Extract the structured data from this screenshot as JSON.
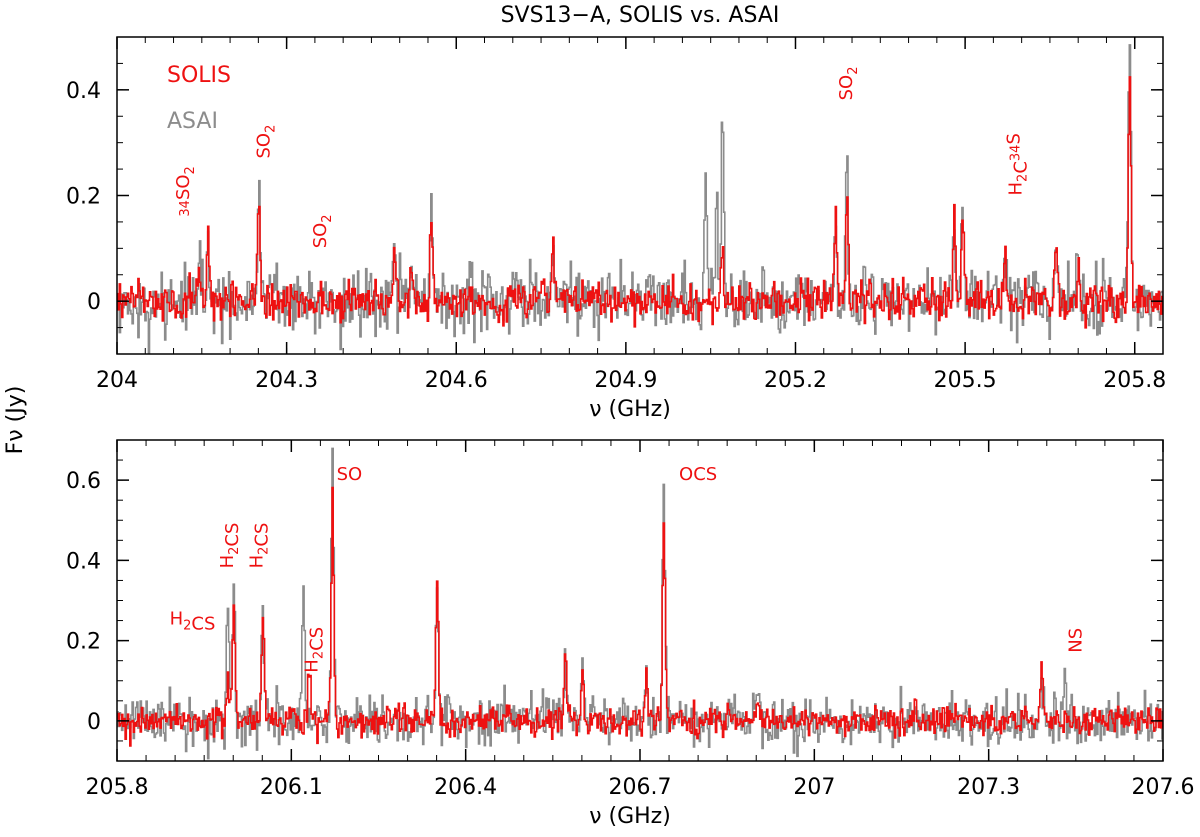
{
  "figure": {
    "title": "SVS13−A, SOLIS vs. ASAI",
    "ylabel": "Fν (Jy)"
  },
  "colors": {
    "SOLIS": "#ee1111",
    "ASAI": "#8c8c8c",
    "axes": "#000000"
  },
  "chart_data": [
    {
      "type": "line",
      "xlabel": "ν (GHz)",
      "xlim": [
        204.0,
        205.85
      ],
      "ylim": [
        -0.1,
        0.5
      ],
      "xticks": [
        204.0,
        204.3,
        204.6,
        204.9,
        205.2,
        205.5,
        205.8
      ],
      "xtick_labels": [
        "204",
        "204.3",
        "204.6",
        "204.9",
        "205.2",
        "205.5",
        "205.8"
      ],
      "yticks": [
        0,
        0.2,
        0.4
      ],
      "ytick_labels": [
        "0",
        "0.2",
        "0.4"
      ],
      "legend": [
        {
          "name": "SOLIS",
          "color": "#ee1111"
        },
        {
          "name": "ASAI",
          "color": "#8c8c8c"
        }
      ],
      "series": [
        {
          "name": "SOLIS",
          "noise_rms": 0.018,
          "peaks": [
            [
              204.145,
              0.05
            ],
            [
              204.16,
              0.13
            ],
            [
              204.25,
              0.2
            ],
            [
              204.49,
              0.08
            ],
            [
              204.52,
              0.1
            ],
            [
              204.555,
              0.16
            ],
            [
              204.77,
              0.1
            ],
            [
              205.07,
              0.1
            ],
            [
              205.27,
              0.16
            ],
            [
              205.29,
              0.19
            ],
            [
              205.48,
              0.16
            ],
            [
              205.495,
              0.15
            ],
            [
              205.57,
              0.08
            ],
            [
              205.66,
              0.11
            ],
            [
              205.7,
              0.09
            ],
            [
              205.79,
              0.43
            ]
          ]
        },
        {
          "name": "ASAI",
          "noise_rms": 0.03,
          "peaks": [
            [
              204.145,
              0.11
            ],
            [
              204.16,
              0.15
            ],
            [
              204.25,
              0.26
            ],
            [
              204.49,
              0.08
            ],
            [
              204.52,
              0.1
            ],
            [
              204.555,
              0.17
            ],
            [
              204.77,
              0.12
            ],
            [
              205.04,
              0.25
            ],
            [
              205.06,
              0.22
            ],
            [
              205.07,
              0.31
            ],
            [
              205.27,
              0.16
            ],
            [
              205.29,
              0.29
            ],
            [
              205.48,
              0.16
            ],
            [
              205.495,
              0.15
            ],
            [
              205.57,
              0.08
            ],
            [
              205.66,
              0.11
            ],
            [
              205.7,
              0.09
            ],
            [
              205.79,
              0.5
            ]
          ]
        }
      ],
      "annotations": [
        {
          "text": "34SO2",
          "x": 204.14,
          "y": 0.16,
          "rotate": true
        },
        {
          "text": "SO2",
          "x": 204.27,
          "y": 0.27,
          "rotate": true
        },
        {
          "text": "SO2",
          "x": 204.37,
          "y": 0.1,
          "rotate": true
        },
        {
          "text": "SO2",
          "x": 205.3,
          "y": 0.38,
          "rotate": true
        },
        {
          "text": "H2C34S",
          "x": 205.6,
          "y": 0.2,
          "rotate": true
        }
      ]
    },
    {
      "type": "line",
      "xlabel": "ν (GHz)",
      "xlim": [
        205.8,
        207.6
      ],
      "ylim": [
        -0.1,
        0.7
      ],
      "xticks": [
        205.8,
        206.1,
        206.4,
        206.7,
        207.0,
        207.3,
        207.6
      ],
      "xtick_labels": [
        "205.8",
        "206.1",
        "206.4",
        "206.7",
        "207",
        "207.3",
        "207.6"
      ],
      "yticks": [
        0,
        0.2,
        0.4,
        0.6
      ],
      "ytick_labels": [
        "0",
        "0.2",
        "0.4",
        "0.6"
      ],
      "series": [
        {
          "name": "SOLIS",
          "noise_rms": 0.018,
          "peaks": [
            [
              205.99,
              0.12
            ],
            [
              206.0,
              0.3
            ],
            [
              206.05,
              0.27
            ],
            [
              206.13,
              0.15
            ],
            [
              206.17,
              0.55
            ],
            [
              206.35,
              0.36
            ],
            [
              206.57,
              0.18
            ],
            [
              206.6,
              0.14
            ],
            [
              206.71,
              0.14
            ],
            [
              206.74,
              0.52
            ],
            [
              206.9,
              0.07
            ],
            [
              207.39,
              0.12
            ]
          ]
        },
        {
          "name": "ASAI",
          "noise_rms": 0.03,
          "peaks": [
            [
              205.99,
              0.32
            ],
            [
              206.0,
              0.35
            ],
            [
              206.05,
              0.3
            ],
            [
              206.12,
              0.35
            ],
            [
              206.17,
              0.69
            ],
            [
              206.35,
              0.36
            ],
            [
              206.57,
              0.17
            ],
            [
              206.6,
              0.15
            ],
            [
              206.71,
              0.16
            ],
            [
              206.74,
              0.62
            ],
            [
              206.9,
              0.07
            ],
            [
              207.39,
              0.12
            ],
            [
              207.43,
              0.13
            ]
          ]
        }
      ],
      "annotations": [
        {
          "text": "H2CS",
          "x": 205.93,
          "y": 0.24,
          "rotate": false
        },
        {
          "text": "H2CS",
          "x": 206.0,
          "y": 0.38,
          "rotate": true
        },
        {
          "text": "H2CS",
          "x": 206.05,
          "y": 0.38,
          "rotate": true
        },
        {
          "text": "H2CS",
          "x": 206.145,
          "y": 0.12,
          "rotate": true
        },
        {
          "text": "SO",
          "x": 206.2,
          "y": 0.6,
          "rotate": false
        },
        {
          "text": "OCS",
          "x": 206.8,
          "y": 0.6,
          "rotate": false
        },
        {
          "text": "NS",
          "x": 207.46,
          "y": 0.17,
          "rotate": true
        }
      ]
    }
  ]
}
